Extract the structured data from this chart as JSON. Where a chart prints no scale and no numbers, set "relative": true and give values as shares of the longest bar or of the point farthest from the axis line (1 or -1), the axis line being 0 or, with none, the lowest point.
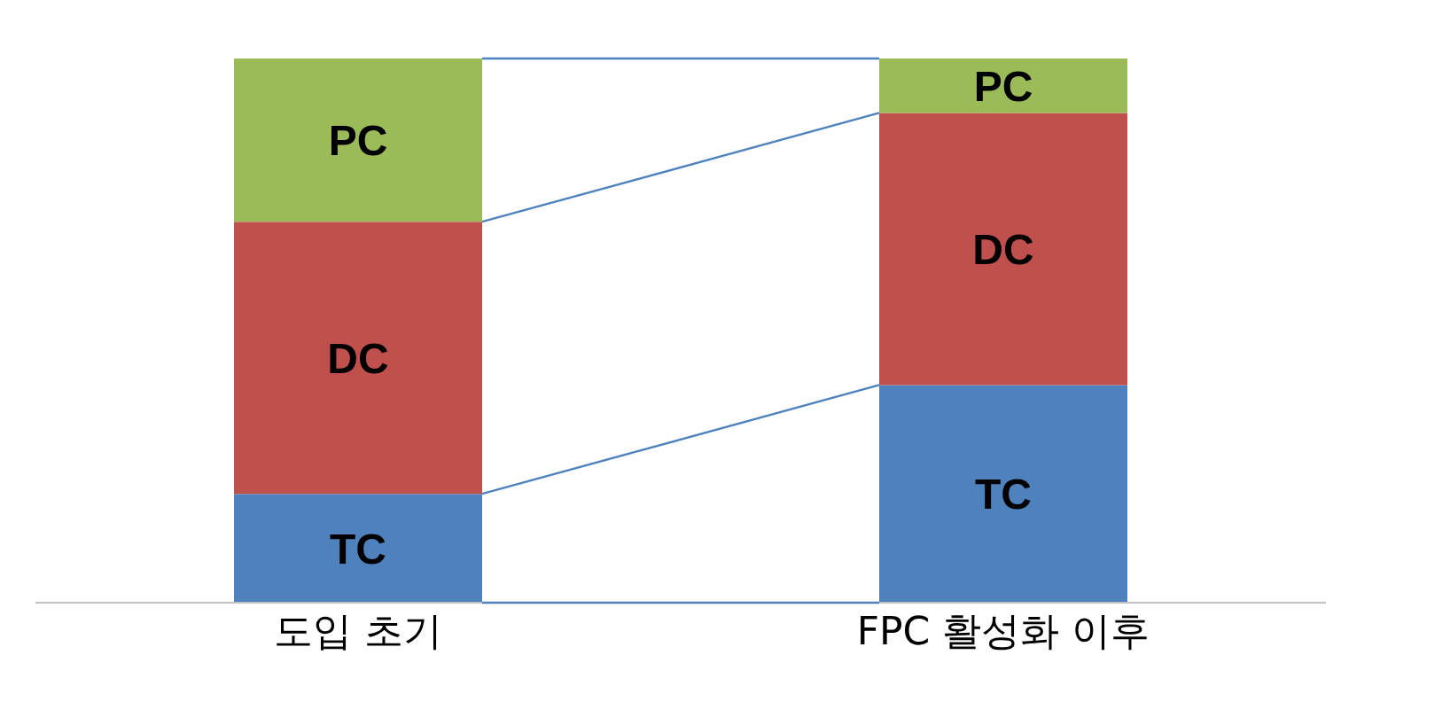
{
  "chart_data": {
    "type": "bar",
    "stacked": true,
    "relative": true,
    "legend": false,
    "categories": [
      "도입 초기",
      "FPC 활성화 이후"
    ],
    "series": [
      {
        "name": "TC",
        "color": "#4f81bd",
        "values": [
          0.2,
          0.4
        ]
      },
      {
        "name": "DC",
        "color": "#c0504d",
        "values": [
          0.5,
          0.5
        ]
      },
      {
        "name": "PC",
        "color": "#9bbb59",
        "values": [
          0.3,
          0.1
        ]
      }
    ]
  }
}
